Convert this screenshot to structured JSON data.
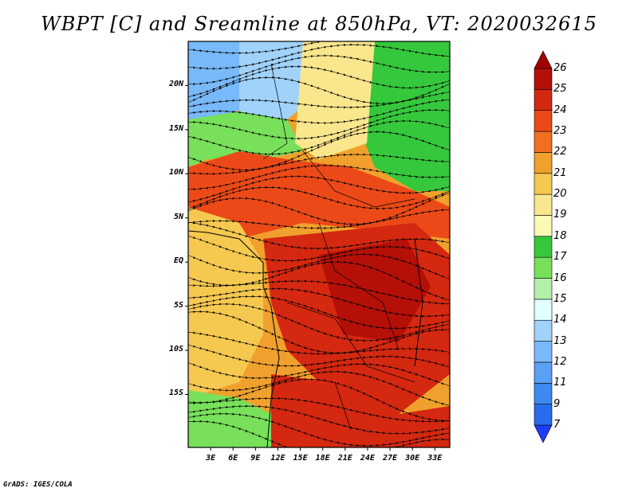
{
  "title": "WBPT [C] and Sreamline at 850hPa, VT: 2020032615",
  "map": {
    "projection": "lat-lon",
    "lon_range": [
      0,
      35
    ],
    "lat_range": [
      -21,
      25
    ],
    "lat_ticks": [
      {
        "value": 20,
        "label": "20N"
      },
      {
        "value": 15,
        "label": "15N"
      },
      {
        "value": 10,
        "label": "10N"
      },
      {
        "value": 5,
        "label": "5N"
      },
      {
        "value": 0,
        "label": "EQ"
      },
      {
        "value": -5,
        "label": "5S"
      },
      {
        "value": -10,
        "label": "10S"
      },
      {
        "value": -15,
        "label": "15S"
      }
    ],
    "lon_ticks": [
      {
        "value": 3,
        "label": "3E"
      },
      {
        "value": 6,
        "label": "6E"
      },
      {
        "value": 9,
        "label": "9E"
      },
      {
        "value": 12,
        "label": "12E"
      },
      {
        "value": 15,
        "label": "15E"
      },
      {
        "value": 18,
        "label": "18E"
      },
      {
        "value": 21,
        "label": "21E"
      },
      {
        "value": 24,
        "label": "24E"
      },
      {
        "value": 27,
        "label": "27E"
      },
      {
        "value": 30,
        "label": "30E"
      },
      {
        "value": 33,
        "label": "33E"
      }
    ]
  },
  "colorbar": {
    "levels": [
      "7",
      "9",
      "11",
      "12",
      "13",
      "14",
      "15",
      "16",
      "17",
      "18",
      "19",
      "20",
      "21",
      "22",
      "23",
      "24",
      "25",
      "26"
    ],
    "colors": [
      "#1e3cff",
      "#2a6bef",
      "#3c89f0",
      "#5aa0f5",
      "#78b9fa",
      "#a0d2fa",
      "#e1ffff",
      "#b4f0aa",
      "#78e05a",
      "#36c83c",
      "#fafab4",
      "#fae68c",
      "#f5c850",
      "#f0a02c",
      "#f07020",
      "#eb4a18",
      "#d42810",
      "#b41008",
      "#a00000"
    ]
  },
  "credit": "GrADS: IGES/COLA"
}
